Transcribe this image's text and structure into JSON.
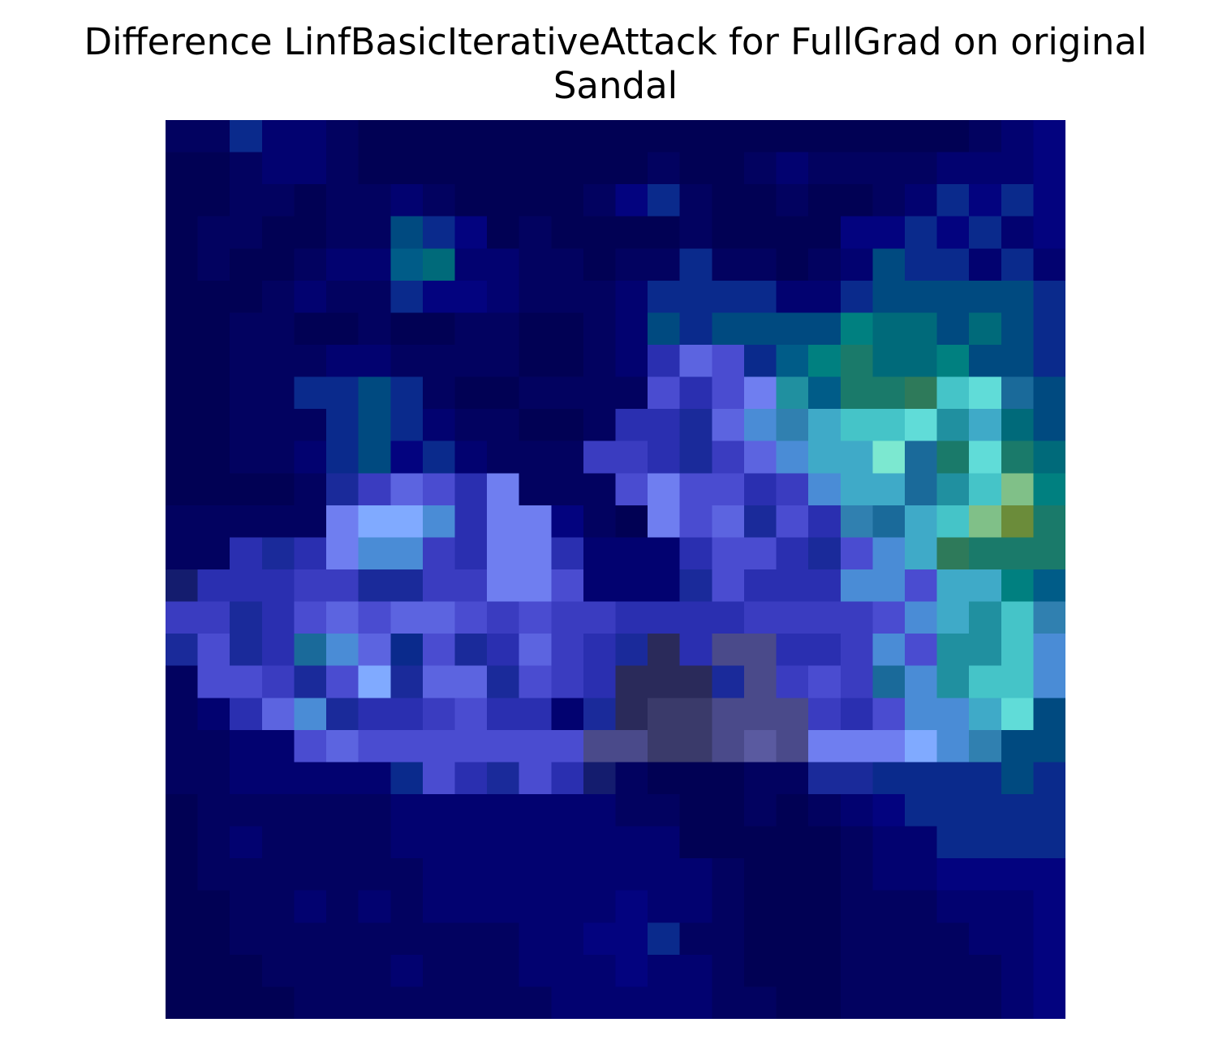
{
  "chart_data": {
    "type": "heatmap",
    "title_lines": [
      "Difference LinfBasicIterativeAttack for FullGrad on original",
      "Sandal"
    ],
    "xlabel": "",
    "ylabel": "",
    "axes_visible": false,
    "grid_size": [
      28,
      28
    ],
    "colors": {
      "background": "#ffffff",
      "grid_default": "#020266"
    },
    "palette": {
      "A": "#010154",
      "B": "#020260",
      "C": "#020270",
      "D": "#03037f",
      "E": "#141c6e",
      "F": "#0a2a8c",
      "G": "#1a2a9a",
      "H": "#2a2fb0",
      "I": "#3a3cc0",
      "J": "#4a4cd0",
      "K": "#5c64e0",
      "L": "#6f7ef0",
      "M": "#80aaff",
      "N": "#4a8cd6",
      "O": "#3faac8",
      "P": "#45c4c8",
      "Q": "#60dcd8",
      "R": "#7ce8d0",
      "S": "#008080",
      "T": "#1a7a6a",
      "U": "#2e7a5a",
      "V": "#6b8c3a",
      "W": "#80c088",
      "X": "#004a80",
      "Y": "#005c88",
      "Z": "#2a2a5a",
      "a": "#3a3a6a",
      "b": "#4a4a8a",
      "c": "#5a5aa0",
      "d": "#006a7a",
      "e": "#1a6a9a",
      "f": "#3080b0",
      "g": "#2090a0"
    },
    "rows": [
      "BBFCCBAAAAAAAAAAAAAAAAAAABCD",
      "AABCCBAAAAAAAAABAABCBBBBCCCD",
      "AABBABBCBAAAABDFBAABAABCFDFD",
      "ABBAABBXFDABAAAABAAAADDFDFCD",
      "ABAABCCYdCCBBABBFBBABCXFFCFC",
      "AAABCBBFDDCBBBCFFFFCCFXXXXXF",
      "AABBAABAABBAABCXFXXXXSddXdXF",
      "AABBBCCBBBBAABCHKJFYSTddSXXF",
      "AABBFFXFBAABBBBJHJLgYTTUPQeX",
      "AABBBFXFCBBAABHHGKNfOPPQgOdX",
      "AABBCFXDFCBBBIIHGIKNOOReTQTd",
      "AAAABGIKJHLBBBJLJJHINOOegPWS",
      "BBBBBLMMNHLLDBALJKGJHfeOPWVT",
      "BBHGHLNNIHLLHCCCHJJHGJNOUTTT",
      "EHHHIIGGIILLJCCCGJHHHNNJOOSY",
      "IIGHJKJKKJIJIIHHHHIIIIJNOgPf",
      "GJGHeNKFJGHKIHGZHbbHHINJggPN",
      "BJJIGJMGKKGJIHZZZGbIJIeNgPPN",
      "BCHKNGHHIJHHCGZaabbbIHJNNOQX",
      "BBCCJKJJJJJJJbbaabcbLLLMNfXX",
      "BBCCCCCFJHGJHEBAAABBGGFFFFXF",
      "ABBBBBBCCCCCCCBBAABABCDFFFFF",
      "ABCBBBBCCCCCCCCCAAAAABCCFFFF",
      "ABBBBBBBCCCCCCCCCBAAABCCDDDD",
      "AABBCBCBCCCCCCDCCBAAABBBCCCD",
      "AABBBBBBBBBCCDDFBBAAABBBBCCD",
      "AAABBBBCBBBCCCDCCBAAABBBBBCD",
      "AAAABBBBBBBBCCCCCBBAABBBBBCD"
    ]
  }
}
